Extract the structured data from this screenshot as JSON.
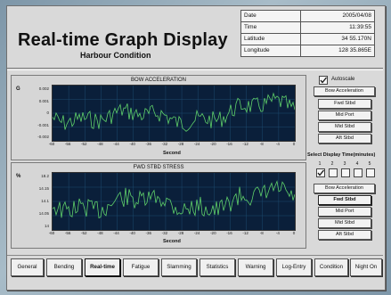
{
  "header": {
    "title": "Real-time Graph Display",
    "subtitle": "Harbour Condition"
  },
  "info_table": [
    {
      "label": "Date",
      "value": "2005/04/08"
    },
    {
      "label": "Time",
      "value": "11:39:55"
    },
    {
      "label": "Latitude",
      "value": "34 55.170N"
    },
    {
      "label": "Longitude",
      "value": "128 35.865E"
    }
  ],
  "chart1": {
    "title": "BOW ACCELERATION",
    "unit": "G",
    "yticks": [
      "0.002",
      "0.001",
      "0",
      "-0.001",
      "-0.002"
    ],
    "xticks": [
      "-60",
      "-56",
      "-52",
      "-48",
      "-44",
      "-40",
      "-36",
      "-32",
      "-28",
      "-24",
      "-20",
      "-16",
      "-12",
      "-8",
      "-4",
      "0"
    ],
    "xlabel": "Second"
  },
  "chart2": {
    "title": "FWD STBD  STRESS",
    "unit": "%",
    "yticks": [
      "18.2",
      "14.15",
      "14.1",
      "14.05",
      "14"
    ],
    "xticks": [
      "-60",
      "-56",
      "-52",
      "-48",
      "-44",
      "-40",
      "-36",
      "-32",
      "-28",
      "-24",
      "-20",
      "-16",
      "-12",
      "-8",
      "-4",
      "0"
    ],
    "xlabel": "Second"
  },
  "controls": {
    "autoscale_label": "Autoscale",
    "autoscale_checked": true,
    "group1": [
      "Bow Acceleration",
      "Fwd Stbd",
      "Mid Port",
      "Mid Stbd",
      "Aft Stbd"
    ],
    "display_time_label": "Select Display Time(minutes)",
    "time_options": [
      "1",
      "2",
      "3",
      "4",
      "5"
    ],
    "group2": [
      "Bow Acceleration",
      "Fwd Stbd",
      "Mid Port",
      "Mid Stbd",
      "Aft Stbd"
    ]
  },
  "tabs": [
    "General",
    "Bending",
    "Real-time",
    "Fatigue",
    "Slamming",
    "Statistics",
    "Warning",
    "Log-Entry",
    "Condition",
    "Night On"
  ],
  "active_tab": "Real-time",
  "colors": {
    "plot_bg": "#0a1f3a",
    "trace": "#5fd06a",
    "grid": "#1d4a6e"
  }
}
